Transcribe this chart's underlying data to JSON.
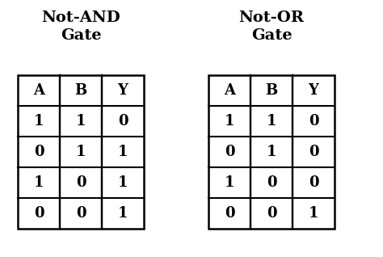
{
  "title_left": "Not-AND\nGate",
  "title_right": "Not-OR\nGate",
  "headers": [
    "A",
    "B",
    "Y"
  ],
  "nand_rows": [
    [
      "1",
      "1",
      "0"
    ],
    [
      "0",
      "1",
      "1"
    ],
    [
      "1",
      "0",
      "1"
    ],
    [
      "0",
      "0",
      "1"
    ]
  ],
  "nor_rows": [
    [
      "1",
      "1",
      "0"
    ],
    [
      "0",
      "1",
      "0"
    ],
    [
      "1",
      "0",
      "0"
    ],
    [
      "0",
      "0",
      "1"
    ]
  ],
  "bg_color": "#ffffff",
  "text_color": "#000000",
  "line_color": "#000000",
  "title_fontsize": 14,
  "header_fontsize": 13,
  "cell_fontsize": 13,
  "fig_width": 4.74,
  "fig_height": 3.18,
  "dpi": 100
}
